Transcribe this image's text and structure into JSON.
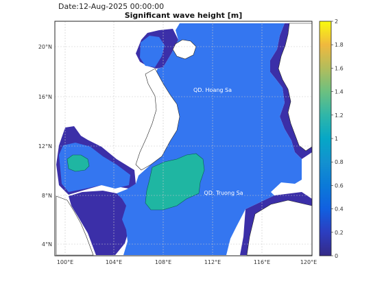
{
  "header": {
    "date_label": "Date:12-Aug-2025 00:00:00",
    "title": "Significant wave height [m]"
  },
  "map": {
    "x_ticks": [
      "100°E",
      "104°E",
      "108°E",
      "112°E",
      "116°E",
      "120°E"
    ],
    "y_ticks": [
      "4°N",
      "8°N",
      "12°N",
      "16°N",
      "20°N"
    ],
    "annotations": {
      "hoang_sa": "QD. Hoang Sa",
      "truong_sa": "QD. Truong Sa"
    },
    "colors": {
      "land": "#ffffff",
      "low_wave": "#3b2fa8",
      "mid_wave": "#3476f0",
      "high_wave": "#1fb6a2"
    }
  },
  "colorbar": {
    "ticks": [
      "0",
      "0.2",
      "0.4",
      "0.6",
      "0.8",
      "1",
      "1.2",
      "1.4",
      "1.6",
      "1.8",
      "2"
    ],
    "range": [
      0,
      2
    ],
    "colormap": "parula"
  }
}
